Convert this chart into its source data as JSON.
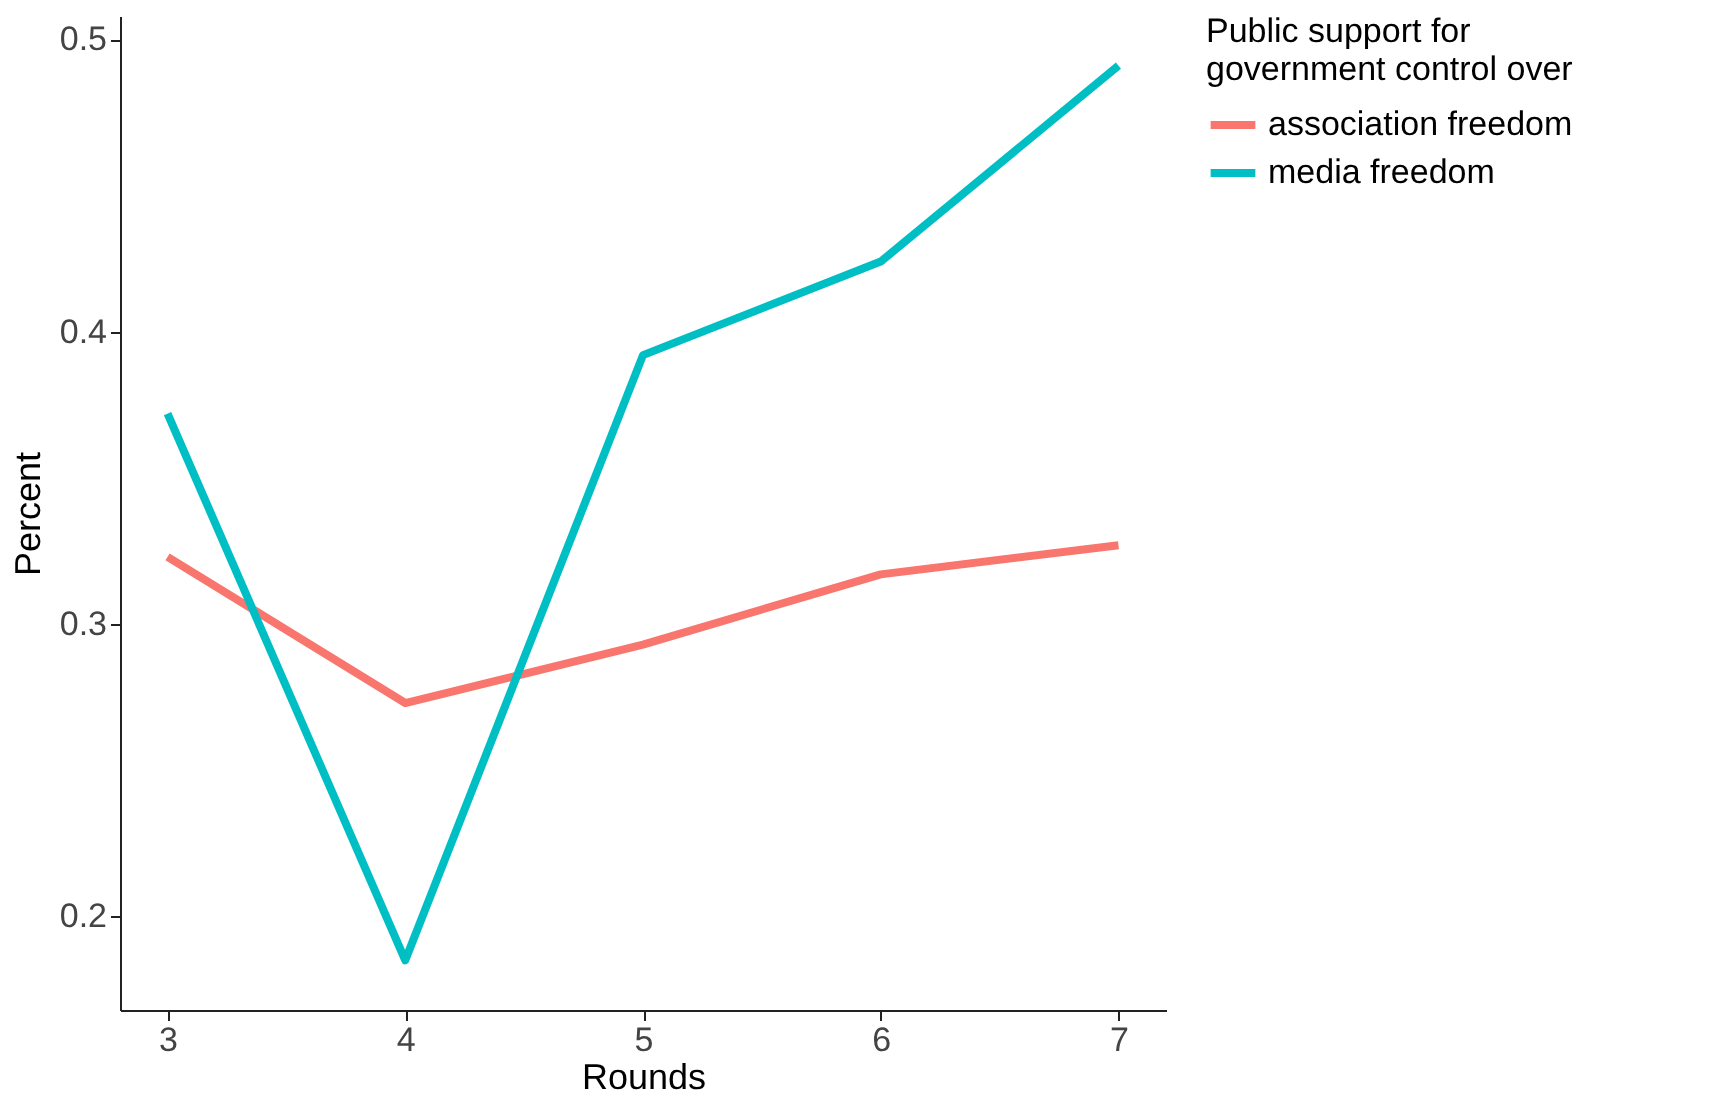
{
  "chart_data": {
    "type": "line",
    "xlabel": "Rounds",
    "ylabel": "Percent",
    "legend_title": "Public support for\ngovernment control over",
    "x": [
      3,
      4,
      5,
      6,
      7
    ],
    "xlim": [
      2.8,
      7.2
    ],
    "xticks": [
      3,
      4,
      5,
      6,
      7
    ],
    "ylim": [
      0.168,
      0.508
    ],
    "yticks": [
      0.2,
      0.3,
      0.4,
      0.5
    ],
    "series": [
      {
        "name": "association  freedom",
        "color": "#f8766d",
        "values": [
          0.323,
          0.273,
          0.293,
          0.317,
          0.327
        ]
      },
      {
        "name": "media  freedom",
        "color": "#00bfc4",
        "values": [
          0.372,
          0.185,
          0.392,
          0.424,
          0.491
        ]
      }
    ],
    "grid": false,
    "legend": "right",
    "marker": "none",
    "line_style": "solid"
  }
}
